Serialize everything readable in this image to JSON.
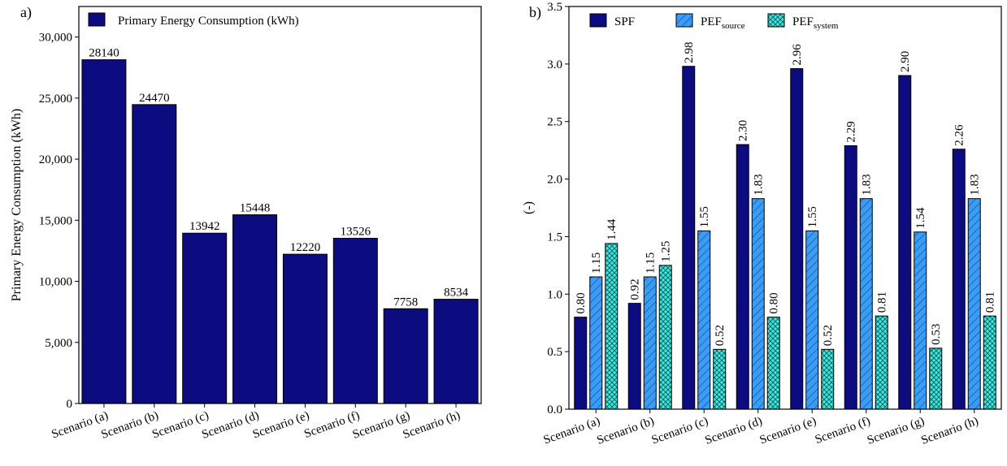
{
  "chart_data": [
    {
      "panel_label": "a)",
      "type": "bar",
      "title": "",
      "xlabel": "",
      "ylabel": "Primary Energy Consumption (kWh)",
      "ylim": [
        0,
        32500
      ],
      "yticks": [
        0,
        5000,
        10000,
        15000,
        20000,
        25000,
        30000
      ],
      "ytick_labels": [
        "0",
        "5,000",
        "10,000",
        "15,000",
        "20,000",
        "25,000",
        "30,000"
      ],
      "categories": [
        "Scenario (a)",
        "Scenario (b)",
        "Scenario (c)",
        "Scenario (d)",
        "Scenario (e)",
        "Scenario (f)",
        "Scenario (g)",
        "Scenario (h)"
      ],
      "series": [
        {
          "name": "Primary Energy Consumption (kWh)",
          "values": [
            28140,
            24470,
            13942,
            15448,
            12220,
            13526,
            7758,
            8534
          ],
          "labels": [
            "28140",
            "24470",
            "13942",
            "15448",
            "12220",
            "13526",
            "7758",
            "8534"
          ],
          "color": "#0c0c80"
        }
      ],
      "legend_placement": "top-left",
      "grid": false
    },
    {
      "panel_label": "b)",
      "type": "bar",
      "title": "",
      "xlabel": "",
      "ylabel": "(-)",
      "ylim": [
        0,
        3.5
      ],
      "yticks": [
        0,
        0.5,
        1,
        1.5,
        2,
        2.5,
        3,
        3.5
      ],
      "ytick_labels": [
        "0.0",
        "0.5",
        "1.0",
        "1.5",
        "2.0",
        "2.5",
        "3.0",
        "3.5"
      ],
      "categories": [
        "Scenario (a)",
        "Scenario (b)",
        "Scenario (c)",
        "Scenario (d)",
        "Scenario (e)",
        "Scenario (f)",
        "Scenario (g)",
        "Scenario (h)"
      ],
      "series": [
        {
          "name": "SPF",
          "name_sub": "",
          "values": [
            0.8,
            0.92,
            2.98,
            2.3,
            2.96,
            2.29,
            2.9,
            2.26
          ],
          "labels": [
            "0.80",
            "0.92",
            "2.98",
            "2.30",
            "2.96",
            "2.29",
            "2.90",
            "2.26"
          ],
          "color": "#0c0c80",
          "pattern": "solid"
        },
        {
          "name": "PEF",
          "name_sub": "source",
          "values": [
            1.15,
            1.15,
            1.55,
            1.83,
            1.55,
            1.83,
            1.54,
            1.83
          ],
          "labels": [
            "1.15",
            "1.15",
            "1.55",
            "1.83",
            "1.55",
            "1.83",
            "1.54",
            "1.83"
          ],
          "color": "#3a9cf2",
          "pattern": "diagonal"
        },
        {
          "name": "PEF",
          "name_sub": "system",
          "values": [
            1.44,
            1.25,
            0.52,
            0.8,
            0.52,
            0.81,
            0.53,
            0.81
          ],
          "labels": [
            "1.44",
            "1.25",
            "0.52",
            "0.80",
            "0.52",
            "0.81",
            "0.53",
            "0.81"
          ],
          "color": "#3ee6e0",
          "pattern": "crosshatch"
        }
      ],
      "legend_placement": "top-left",
      "grid": false
    }
  ]
}
